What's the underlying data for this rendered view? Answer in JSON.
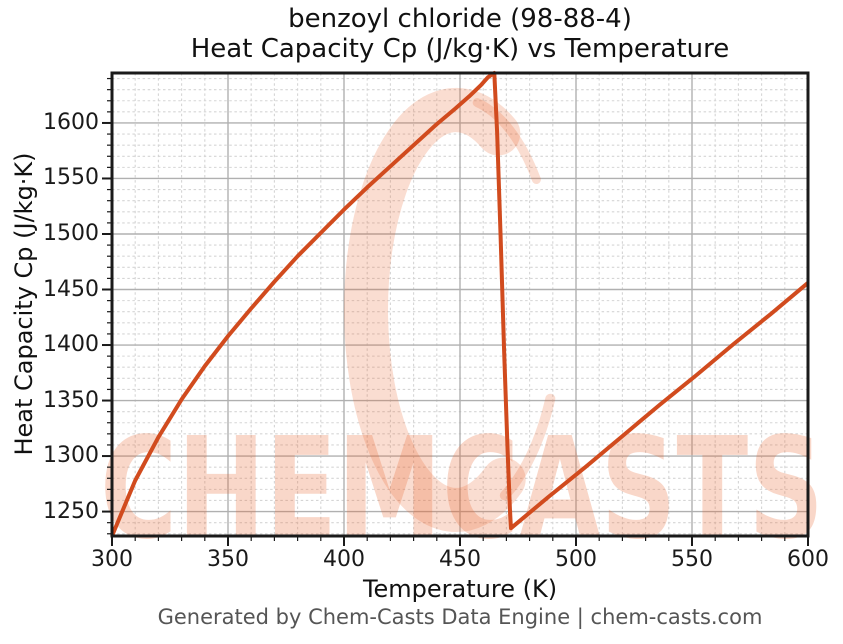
{
  "title": {
    "line1": "benzoyl chloride (98-88-4)",
    "line2": "Heat Capacity Cp (J/kg·K) vs Temperature"
  },
  "footer": {
    "text": "Generated by Chem-Casts Data Engine | chem-casts.com"
  },
  "watermark": {
    "text": "CHEMCASTS",
    "logo": "brush-ring-logo",
    "color": "#e8632f",
    "ring_opacity": 0.22,
    "text_opacity": 0.26
  },
  "chart_data": {
    "type": "line",
    "title": "benzoyl chloride (98-88-4) Heat Capacity Cp (J/kg·K) vs Temperature",
    "xlabel": "Temperature (K)",
    "ylabel": "Heat Capacity Cp (J/kg·K)",
    "xlim": [
      300,
      600
    ],
    "ylim": [
      1228,
      1645
    ],
    "x_ticks": [
      300,
      350,
      400,
      450,
      500,
      550,
      600
    ],
    "y_ticks": [
      1250,
      1300,
      1350,
      1400,
      1450,
      1500,
      1550,
      1600
    ],
    "x_minor_step": 10,
    "y_minor_step": 10,
    "grid": {
      "major": "solid",
      "minor": "dashed"
    },
    "line_color": "#d14b1e",
    "line_width": 4,
    "series": [
      {
        "name": "Heat Capacity Cp",
        "points": [
          [
            300,
            1228
          ],
          [
            310,
            1278
          ],
          [
            320,
            1317
          ],
          [
            330,
            1351
          ],
          [
            340,
            1381
          ],
          [
            350,
            1408
          ],
          [
            360,
            1433
          ],
          [
            370,
            1457
          ],
          [
            380,
            1480
          ],
          [
            390,
            1501
          ],
          [
            400,
            1522
          ],
          [
            410,
            1542
          ],
          [
            420,
            1561
          ],
          [
            430,
            1580
          ],
          [
            440,
            1599
          ],
          [
            448,
            1613
          ],
          [
            454,
            1624
          ],
          [
            459,
            1634
          ],
          [
            462,
            1641
          ],
          [
            464.8,
            1645
          ],
          [
            466,
            1592
          ],
          [
            467.5,
            1498
          ],
          [
            469,
            1395
          ],
          [
            470.5,
            1305
          ],
          [
            471.6,
            1248
          ],
          [
            472,
            1235
          ],
          [
            488,
            1263
          ],
          [
            504,
            1290
          ],
          [
            520,
            1318
          ],
          [
            536,
            1346
          ],
          [
            552,
            1373
          ],
          [
            568,
            1401
          ],
          [
            584,
            1428
          ],
          [
            600,
            1456
          ]
        ]
      }
    ]
  }
}
